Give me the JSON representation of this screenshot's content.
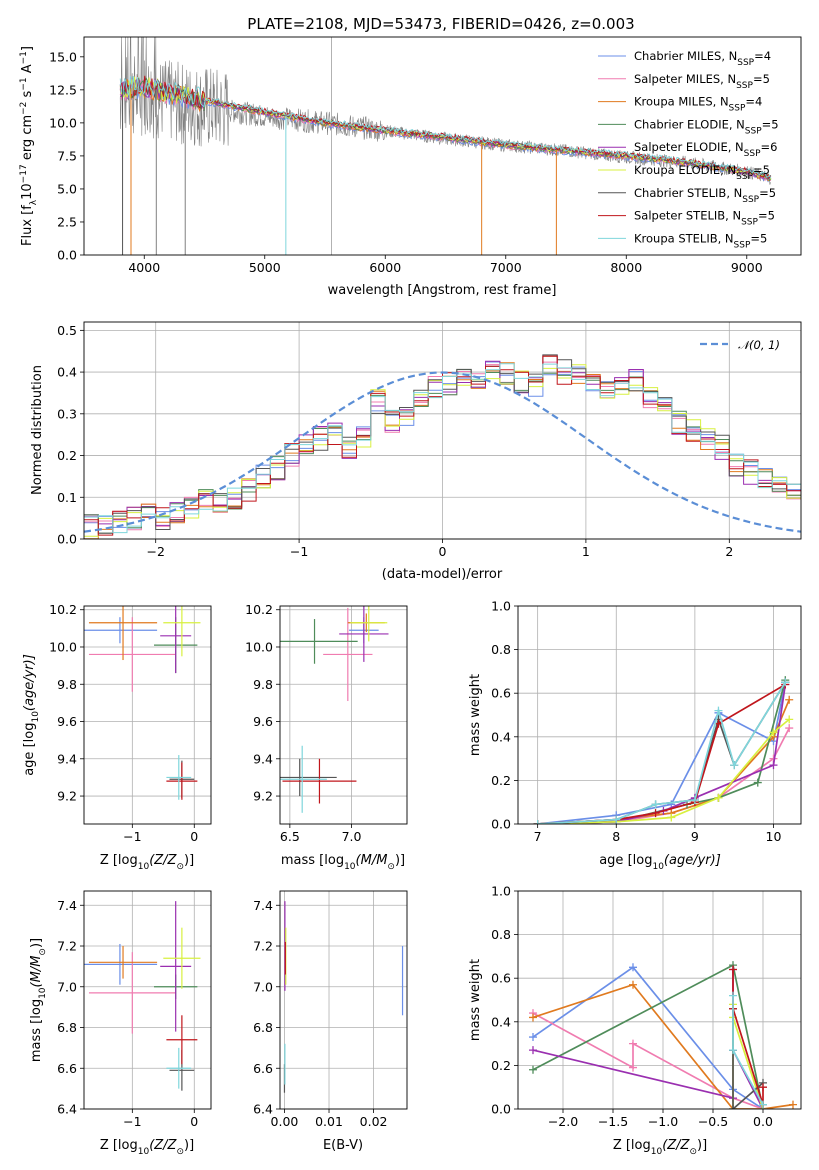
{
  "figure": {
    "title": "PLATE=2108, MJD=53473, FIBERID=0426, z=0.003"
  },
  "models": [
    {
      "name": "Chabrier MILES, N$_{SSP}$=4",
      "label_main": "Chabrier MILES, N",
      "label_sub": "SSP",
      "label_rest": "=4",
      "color": "#6b8fe8"
    },
    {
      "name": "Salpeter MILES, N$_{SSP}$=5",
      "label_main": "Salpeter MILES, N",
      "label_sub": "SSP",
      "label_rest": "=5",
      "color": "#f07cb0"
    },
    {
      "name": "Kroupa MILES, N$_{SSP}$=4",
      "label_main": "Kroupa MILES, N",
      "label_sub": "SSP",
      "label_rest": "=4",
      "color": "#e07a1f"
    },
    {
      "name": "Chabrier ELODIE, N$_{SSP}$=5",
      "label_main": "Chabrier ELODIE, N",
      "label_sub": "SSP",
      "label_rest": "=5",
      "color": "#4f8c5a"
    },
    {
      "name": "Salpeter ELODIE, N$_{SSP}$=6",
      "label_main": "Salpeter ELODIE, N",
      "label_sub": "SSP",
      "label_rest": "=6",
      "color": "#9a2fb0"
    },
    {
      "name": "Kroupa ELODIE, N$_{SSP}$=5",
      "label_main": "Kroupa ELODIE, N",
      "label_sub": "SSP",
      "label_rest": "=5",
      "color": "#d8f040"
    },
    {
      "name": "Chabrier STELIB, N$_{SSP}$=5",
      "label_main": "Chabrier STELIB, N",
      "label_sub": "SSP",
      "label_rest": "=5",
      "color": "#555555"
    },
    {
      "name": "Salpeter STELIB, N$_{SSP}$=5",
      "label_main": "Salpeter STELIB, N",
      "label_sub": "SSP",
      "label_rest": "=5",
      "color": "#c0161c"
    },
    {
      "name": "Kroupa STELIB, N$_{SSP}$=5",
      "label_main": "Kroupa STELIB, N",
      "label_sub": "SSP",
      "label_rest": "=5",
      "color": "#7fd6dc"
    }
  ],
  "chart_data": [
    {
      "id": "spectrum",
      "type": "line",
      "title": "PLATE=2108, MJD=53473, FIBERID=0426, z=0.003",
      "xlabel": "wavelength [Angstrom, rest frame]",
      "ylabel_parts": [
        "Flux [f",
        "λ",
        "10",
        "−17",
        " erg cm",
        "−2",
        " s",
        "−1",
        " A",
        "−1",
        "]"
      ],
      "xlim": [
        3500,
        9450
      ],
      "ylim": [
        0,
        16.5
      ],
      "xticks": [
        4000,
        5000,
        6000,
        7000,
        8000,
        9000
      ],
      "yticks": [
        0.0,
        2.5,
        5.0,
        7.5,
        10.0,
        12.5,
        15.0
      ],
      "xtick_labels": [
        "4000",
        "5000",
        "6000",
        "7000",
        "8000",
        "9000"
      ],
      "ytick_labels": [
        "0.0",
        "2.5",
        "5.0",
        "7.5",
        "10.0",
        "12.5",
        "15.0"
      ],
      "legend_position": "upper right",
      "grid": false,
      "data_wavelength": [
        3800,
        4000,
        4200,
        4500,
        5000,
        5500,
        6000,
        6500,
        7000,
        7500,
        8000,
        8500,
        9000,
        9200
      ],
      "data_flux": [
        12.0,
        12.2,
        11.6,
        11.2,
        10.5,
        10.0,
        9.4,
        8.8,
        8.3,
        7.9,
        7.4,
        7.0,
        6.3,
        5.8
      ],
      "model_flux": [
        12.5,
        12.8,
        12.3,
        11.7,
        10.8,
        10.0,
        9.4,
        8.9,
        8.3,
        7.9,
        7.5,
        7.0,
        6.3,
        5.8
      ]
    },
    {
      "id": "residuals",
      "type": "histogram",
      "xlabel": "(data-model)/error",
      "ylabel": "Normed distribution",
      "xlim": [
        -2.5,
        2.5
      ],
      "ylim": [
        0,
        0.52
      ],
      "xticks": [
        -2,
        -1,
        0,
        1,
        2
      ],
      "xtick_labels": [
        "−2",
        "−1",
        "0",
        "1",
        "2"
      ],
      "yticks": [
        0.0,
        0.1,
        0.2,
        0.3,
        0.4,
        0.5
      ],
      "ytick_labels": [
        "0.0",
        "0.1",
        "0.2",
        "0.3",
        "0.4",
        "0.5"
      ],
      "grid": true,
      "legend_position": "upper right",
      "reference_label": "𝒩(0, 1)",
      "reference_color": "#5b8ed6",
      "bin_width": 0.1,
      "bin_start": -2.5,
      "base_counts": [
        0.03,
        0.03,
        0.04,
        0.05,
        0.07,
        0.05,
        0.06,
        0.08,
        0.09,
        0.09,
        0.1,
        0.12,
        0.15,
        0.17,
        0.2,
        0.22,
        0.24,
        0.25,
        0.22,
        0.25,
        0.33,
        0.28,
        0.3,
        0.33,
        0.36,
        0.37,
        0.38,
        0.38,
        0.41,
        0.4,
        0.38,
        0.37,
        0.42,
        0.4,
        0.39,
        0.38,
        0.36,
        0.37,
        0.38,
        0.34,
        0.32,
        0.28,
        0.26,
        0.24,
        0.22,
        0.18,
        0.16,
        0.15,
        0.14,
        0.12,
        0.1,
        0.09,
        0.08,
        0.07,
        0.06,
        0.05,
        0.05,
        0.04,
        0.03,
        0.03
      ]
    },
    {
      "id": "z-age",
      "type": "errorbar",
      "xlabel": "Z [log10(Z/Z☉)]",
      "xlabel_parts": [
        "Z [log",
        "10",
        "(Z/Z",
        "⊙",
        ")]"
      ],
      "ylabel_parts": [
        "age  [log",
        "10",
        "(age/yr)]"
      ],
      "xlim": [
        -1.78,
        0.27
      ],
      "ylim": [
        9.05,
        10.22
      ],
      "xticks": [
        -1,
        0
      ],
      "xtick_labels": [
        "−1",
        "0"
      ],
      "yticks": [
        9.2,
        9.4,
        9.6,
        9.8,
        10.0,
        10.2
      ],
      "ytick_labels": [
        "9.2",
        "9.4",
        "9.6",
        "9.8",
        "10.0",
        "10.2"
      ],
      "grid": true,
      "points": [
        {
          "model": 0,
          "x": -1.2,
          "xerr": 0.6,
          "y": 10.09,
          "yerr": 0.07
        },
        {
          "model": 1,
          "x": -1.0,
          "xerr": 0.7,
          "y": 9.96,
          "yerr": 0.2
        },
        {
          "model": 2,
          "x": -1.15,
          "xerr": 0.55,
          "y": 10.13,
          "yerr": 0.2
        },
        {
          "model": 3,
          "x": -0.3,
          "xerr": 0.35,
          "y": 10.01,
          "yerr": 0.15
        },
        {
          "model": 4,
          "x": -0.3,
          "xerr": 0.25,
          "y": 10.06,
          "yerr": 0.2
        },
        {
          "model": 5,
          "x": -0.2,
          "xerr": 0.3,
          "y": 10.13,
          "yerr": 0.18
        },
        {
          "model": 6,
          "x": -0.2,
          "xerr": 0.2,
          "y": 9.29,
          "yerr": 0.1
        },
        {
          "model": 7,
          "x": -0.2,
          "xerr": 0.25,
          "y": 9.28,
          "yerr": 0.1
        },
        {
          "model": 8,
          "x": -0.25,
          "xerr": 0.2,
          "y": 9.3,
          "yerr": 0.12
        }
      ]
    },
    {
      "id": "mass-age",
      "type": "errorbar",
      "xlabel_parts": [
        "mass [log",
        "10",
        "(M/M",
        "⊙",
        ")]"
      ],
      "xlim": [
        6.42,
        7.45
      ],
      "ylim": [
        9.05,
        10.22
      ],
      "xticks": [
        6.5,
        7.0
      ],
      "xtick_labels": [
        "6.5",
        "7.0"
      ],
      "yticks": [
        9.2,
        9.4,
        9.6,
        9.8,
        10.0,
        10.2
      ],
      "ytick_labels": [
        "9.2",
        "9.4",
        "9.6",
        "9.8",
        "10.0",
        "10.2"
      ],
      "grid": true,
      "points": [
        {
          "model": 0,
          "x": 7.1,
          "xerr": 0.12,
          "y": 10.09,
          "yerr": 0.07
        },
        {
          "model": 1,
          "x": 6.97,
          "xerr": 0.2,
          "y": 9.96,
          "yerr": 0.25
        },
        {
          "model": 2,
          "x": 7.12,
          "xerr": 0.15,
          "y": 10.13,
          "yerr": 0.05
        },
        {
          "model": 3,
          "x": 6.7,
          "xerr": 0.35,
          "y": 10.03,
          "yerr": 0.12
        },
        {
          "model": 4,
          "x": 7.1,
          "xerr": 0.2,
          "y": 10.07,
          "yerr": 0.15
        },
        {
          "model": 5,
          "x": 7.14,
          "xerr": 0.15,
          "y": 10.13,
          "yerr": 0.1
        },
        {
          "model": 6,
          "x": 6.58,
          "xerr": 0.3,
          "y": 9.3,
          "yerr": 0.1
        },
        {
          "model": 7,
          "x": 6.74,
          "xerr": 0.3,
          "y": 9.28,
          "yerr": 0.12
        },
        {
          "model": 8,
          "x": 6.6,
          "xerr": 0.2,
          "y": 9.29,
          "yerr": 0.18
        }
      ]
    },
    {
      "id": "age-massweight",
      "type": "line",
      "xlabel_parts": [
        "age  [log",
        "10",
        "(age/yr)]"
      ],
      "ylabel": "mass weight",
      "xlim": [
        6.75,
        10.35
      ],
      "ylim": [
        0,
        1.0
      ],
      "xticks": [
        7,
        8,
        9,
        10
      ],
      "xtick_labels": [
        "7",
        "8",
        "9",
        "10"
      ],
      "yticks": [
        0.0,
        0.2,
        0.4,
        0.6,
        0.8,
        1.0
      ],
      "ytick_labels": [
        "0.0",
        "0.2",
        "0.4",
        "0.6",
        "0.8",
        "1.0"
      ],
      "grid": true,
      "series": [
        {
          "model": 0,
          "x": [
            7.0,
            8.0,
            8.7,
            9.3,
            10.0,
            10.15
          ],
          "y": [
            0.0,
            0.04,
            0.09,
            0.51,
            0.38,
            0.65
          ]
        },
        {
          "model": 1,
          "x": [
            7.0,
            8.0,
            8.7,
            9.3,
            10.0,
            10.2
          ],
          "y": [
            0.0,
            0.01,
            0.05,
            0.12,
            0.3,
            0.44
          ]
        },
        {
          "model": 2,
          "x": [
            7.0,
            8.0,
            8.7,
            9.3,
            10.0,
            10.2
          ],
          "y": [
            0.0,
            0.02,
            0.05,
            0.12,
            0.4,
            0.57
          ]
        },
        {
          "model": 3,
          "x": [
            7.0,
            8.0,
            8.9,
            9.3,
            9.8,
            10.15
          ],
          "y": [
            0.0,
            0.01,
            0.09,
            0.12,
            0.19,
            0.66
          ]
        },
        {
          "model": 4,
          "x": [
            7.0,
            8.0,
            8.6,
            9.0,
            10.0,
            10.15
          ],
          "y": [
            0.0,
            0.01,
            0.06,
            0.12,
            0.27,
            0.64
          ]
        },
        {
          "model": 5,
          "x": [
            7.0,
            8.0,
            8.7,
            9.3,
            10.0,
            10.2
          ],
          "y": [
            0.0,
            0.01,
            0.03,
            0.12,
            0.42,
            0.48
          ]
        },
        {
          "model": 6,
          "x": [
            7.0,
            8.0,
            8.5,
            9.0,
            9.3,
            9.5,
            10.15
          ],
          "y": [
            0.0,
            0.02,
            0.09,
            0.11,
            0.48,
            0.27,
            0.65
          ]
        },
        {
          "model": 7,
          "x": [
            7.0,
            8.0,
            8.5,
            9.0,
            9.3,
            10.15
          ],
          "y": [
            0.0,
            0.02,
            0.05,
            0.1,
            0.46,
            0.64
          ]
        },
        {
          "model": 8,
          "x": [
            7.0,
            8.0,
            8.5,
            9.0,
            9.3,
            9.5,
            10.15
          ],
          "y": [
            0.0,
            0.02,
            0.09,
            0.11,
            0.52,
            0.27,
            0.65
          ]
        }
      ]
    },
    {
      "id": "z-mass",
      "type": "errorbar",
      "xlabel_parts": [
        "Z [log",
        "10",
        "(Z/Z",
        "⊙",
        ")]"
      ],
      "ylabel_parts": [
        "mass [log",
        "10",
        "(M/M",
        "⊙",
        ")]"
      ],
      "xlim": [
        -1.78,
        0.27
      ],
      "ylim": [
        6.4,
        7.47
      ],
      "xticks": [
        -1,
        0
      ],
      "xtick_labels": [
        "−1",
        "0"
      ],
      "yticks": [
        6.4,
        6.6,
        6.8,
        7.0,
        7.2,
        7.4
      ],
      "ytick_labels": [
        "6.4",
        "6.6",
        "6.8",
        "7.0",
        "7.2",
        "7.4"
      ],
      "grid": true,
      "points": [
        {
          "model": 0,
          "x": -1.2,
          "xerr": 0.6,
          "y": 7.11,
          "yerr": 0.1
        },
        {
          "model": 1,
          "x": -1.0,
          "xerr": 0.7,
          "y": 6.97,
          "yerr": 0.2
        },
        {
          "model": 2,
          "x": -1.15,
          "xerr": 0.55,
          "y": 7.12,
          "yerr": 0.08
        },
        {
          "model": 3,
          "x": -0.3,
          "xerr": 0.35,
          "y": 7.0,
          "yerr": 0.06
        },
        {
          "model": 4,
          "x": -0.3,
          "xerr": 0.25,
          "y": 7.1,
          "yerr": 0.32
        },
        {
          "model": 5,
          "x": -0.2,
          "xerr": 0.3,
          "y": 7.14,
          "yerr": 0.15
        },
        {
          "model": 6,
          "x": -0.2,
          "xerr": 0.2,
          "y": 6.59,
          "yerr": 0.1
        },
        {
          "model": 7,
          "x": -0.2,
          "xerr": 0.25,
          "y": 6.74,
          "yerr": 0.12
        },
        {
          "model": 8,
          "x": -0.25,
          "xerr": 0.2,
          "y": 6.6,
          "yerr": 0.1
        }
      ]
    },
    {
      "id": "ebv-mass",
      "type": "errorbar",
      "xlabel": "E(B-V)",
      "xlim": [
        -0.001,
        0.0275
      ],
      "ylim": [
        6.4,
        7.47
      ],
      "xticks": [
        0.0,
        0.01,
        0.02
      ],
      "xtick_labels": [
        "0.00",
        "0.01",
        "0.02"
      ],
      "yticks": [
        6.4,
        6.6,
        6.8,
        7.0,
        7.2,
        7.4
      ],
      "ytick_labels": [
        "6.4",
        "6.6",
        "6.8",
        "7.0",
        "7.2",
        "7.4"
      ],
      "grid": true,
      "points": [
        {
          "model": 0,
          "x": 0.0265,
          "xerr": 0,
          "y": 7.03,
          "yerr": 0.17
        },
        {
          "model": 4,
          "x": 0.0001,
          "xerr": 0,
          "y": 7.2,
          "yerr": 0.22
        },
        {
          "model": 5,
          "x": 0.0003,
          "xerr": 0,
          "y": 7.15,
          "yerr": 0.14
        },
        {
          "model": 7,
          "x": 0.0002,
          "xerr": 0,
          "y": 7.14,
          "yerr": 0.08
        },
        {
          "model": 6,
          "x": 0.0,
          "xerr": 0,
          "y": 6.55,
          "yerr": 0.07
        },
        {
          "model": 8,
          "x": 0.0001,
          "xerr": 0,
          "y": 6.62,
          "yerr": 0.1
        }
      ]
    },
    {
      "id": "z-massweight",
      "type": "line",
      "xlabel_parts": [
        "Z [log",
        "10",
        "(Z/Z",
        "⊙",
        ")]"
      ],
      "ylabel": "mass weight",
      "xlim": [
        -2.45,
        0.38
      ],
      "ylim": [
        0,
        1.0
      ],
      "xticks": [
        -2.0,
        -1.5,
        -1.0,
        -0.5,
        0.0
      ],
      "xtick_labels": [
        "−2.0",
        "−1.5",
        "−1.0",
        "−0.5",
        "0.0"
      ],
      "yticks": [
        0.0,
        0.2,
        0.4,
        0.6,
        0.8,
        1.0
      ],
      "ytick_labels": [
        "0.0",
        "0.2",
        "0.4",
        "0.6",
        "0.8",
        "1.0"
      ],
      "grid": true,
      "series": [
        {
          "model": 0,
          "x": [
            -2.3,
            -1.3,
            -0.3,
            0.0
          ],
          "y": [
            0.33,
            0.65,
            0.09,
            0.0
          ]
        },
        {
          "model": 1,
          "x": [
            -2.3,
            -1.3,
            -1.3,
            -0.3,
            0.0
          ],
          "y": [
            0.44,
            0.19,
            0.3,
            0.05,
            0.0
          ]
        },
        {
          "model": 2,
          "x": [
            -2.3,
            -1.3,
            -0.3,
            0.0,
            0.3
          ],
          "y": [
            0.42,
            0.57,
            0.0,
            0.0,
            0.02
          ]
        },
        {
          "model": 3,
          "x": [
            -2.3,
            -0.3,
            0.0
          ],
          "y": [
            0.18,
            0.66,
            0.0
          ]
        },
        {
          "model": 4,
          "x": [
            -2.3,
            -0.3,
            -0.3,
            -0.3,
            0.0
          ],
          "y": [
            0.27,
            0.05,
            0.64,
            0.27,
            0.0
          ]
        },
        {
          "model": 5,
          "x": [
            -0.3,
            -0.3,
            -0.3,
            0.0
          ],
          "y": [
            0.0,
            0.48,
            0.42,
            0.0
          ]
        },
        {
          "model": 6,
          "x": [
            -0.3,
            -0.3,
            -0.3,
            0.0
          ],
          "y": [
            0.27,
            0.46,
            0.0,
            0.12
          ]
        },
        {
          "model": 7,
          "x": [
            -0.3,
            -0.3,
            0.0,
            0.0
          ],
          "y": [
            0.64,
            0.46,
            0.02,
            0.1
          ]
        },
        {
          "model": 8,
          "x": [
            -0.3,
            -0.3,
            0.0
          ],
          "y": [
            0.52,
            0.27,
            0.02
          ]
        }
      ]
    }
  ]
}
